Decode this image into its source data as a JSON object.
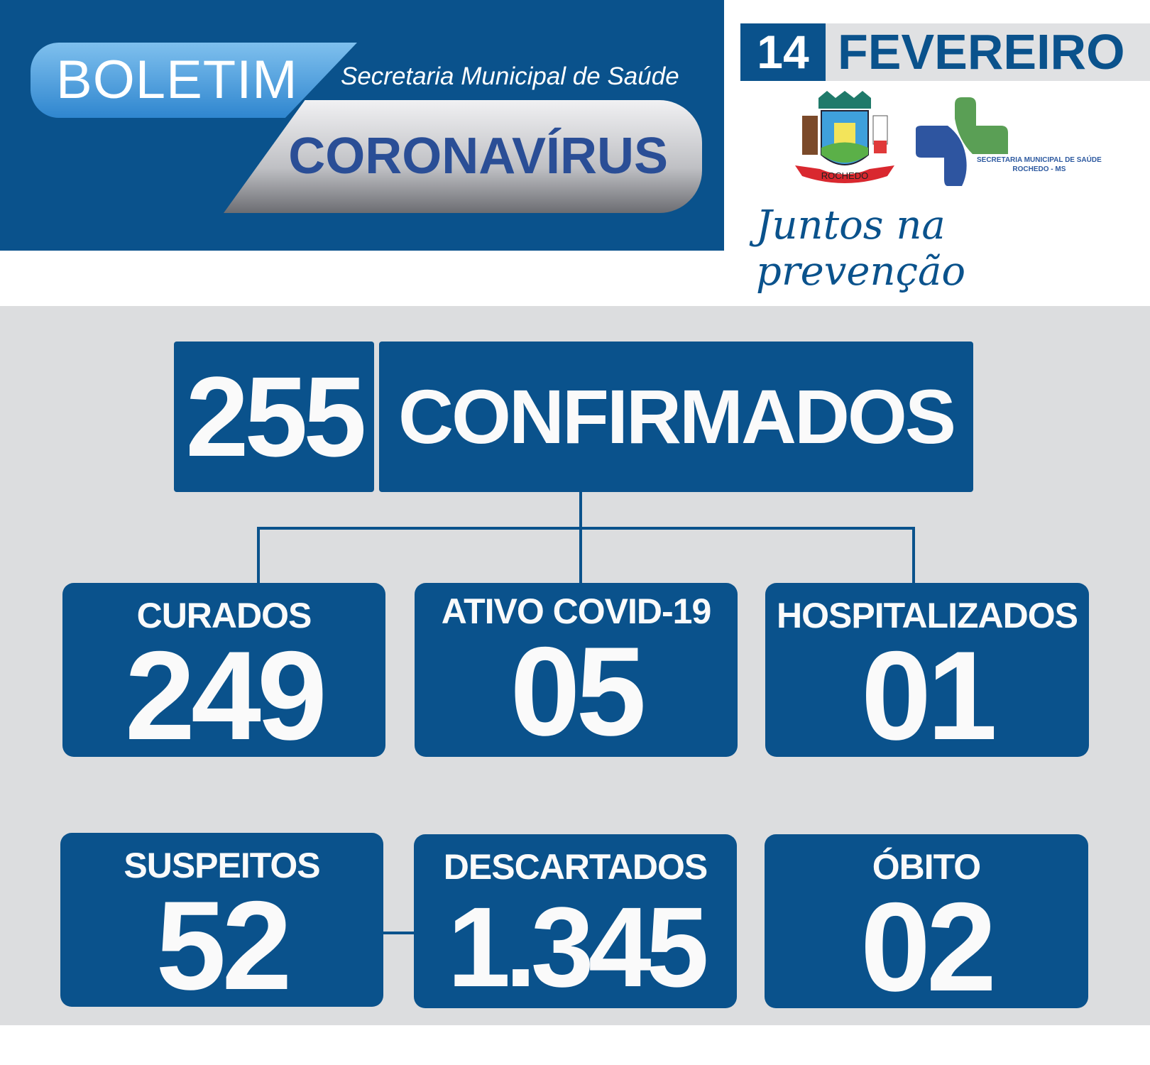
{
  "header": {
    "boletim": "BOLETIM",
    "secretaria": "Secretaria Municipal de Saúde",
    "title": "CORONAVÍRUS"
  },
  "date": {
    "day": "14",
    "month": "FEVEREIRO"
  },
  "logos": {
    "crest_text": "ROCHEDO",
    "sms_line1": "SECRETARIA MUNICIPAL DE SAÚDE",
    "sms_line2": "ROCHEDO - MS"
  },
  "slogan": "Juntos na prevenção",
  "colors": {
    "primary": "#0a528c",
    "background": "#dcdddf"
  },
  "confirmed": {
    "value": "255",
    "label": "CONFIRMADOS"
  },
  "stats": [
    {
      "label": "CURADOS",
      "value": "249"
    },
    {
      "label": "ATIVO COVID-19",
      "value": "05"
    },
    {
      "label": "HOSPITALIZADOS",
      "value": "01"
    },
    {
      "label": "SUSPEITOS",
      "value": "52"
    },
    {
      "label": "DESCARTADOS",
      "value": "1.345"
    },
    {
      "label": "ÓBITO",
      "value": "02"
    }
  ]
}
